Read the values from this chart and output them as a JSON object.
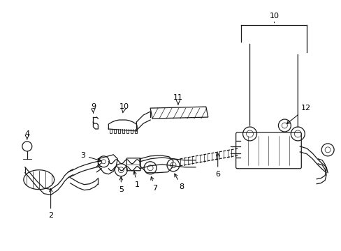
{
  "bg_color": "#ffffff",
  "line_color": "#1a1a1a",
  "figsize": [
    4.89,
    3.6
  ],
  "dpi": 100,
  "fs": 7.5,
  "lw": 0.9
}
